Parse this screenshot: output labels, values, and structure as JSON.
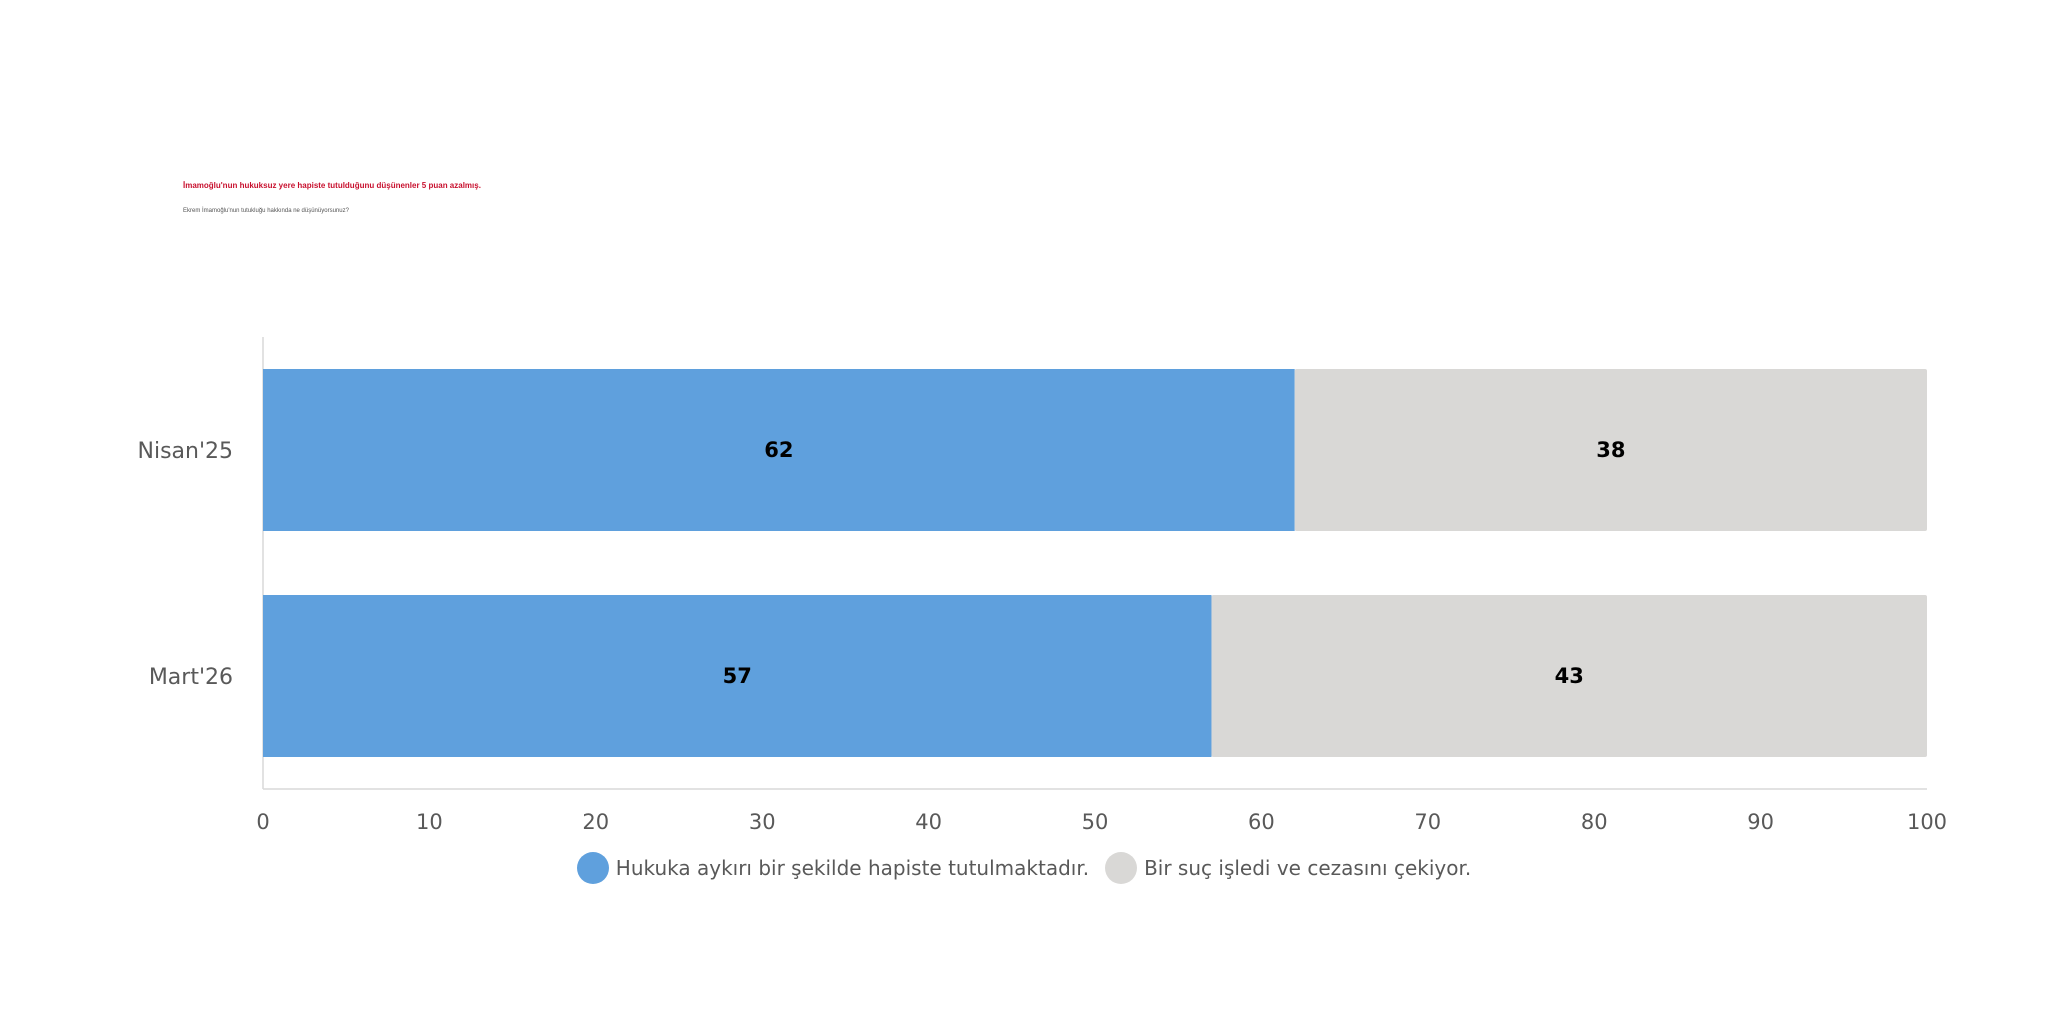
{
  "header": {
    "title": "İmamoğlu'nun hukuksuz yere hapiste tutulduğunu düşünenler 5 puan azalmış.",
    "subtitle": "Ekrem İmamoğlu'nun tutukluğu hakkında ne düşünüyorsunuz?"
  },
  "colors": {
    "series1": "#5fa0dd",
    "series2": "#d9d8d6",
    "axis_text": "#595959",
    "title": "#c8102e"
  },
  "legend": {
    "items": [
      {
        "label": "Hukuka aykırı bir şekilde hapiste tutulmaktadır.",
        "color": "#5fa0dd"
      },
      {
        "label": "Bir suç işledi ve cezasını çekiyor.",
        "color": "#d9d8d6"
      }
    ]
  },
  "chart_data": {
    "type": "bar",
    "orientation": "horizontal",
    "stacked": true,
    "categories": [
      "Nisan'25",
      "Mart'26"
    ],
    "series": [
      {
        "name": "Hukuka aykırı bir şekilde hapiste tutulmaktadır.",
        "values": [
          62,
          57
        ],
        "color": "#5fa0dd"
      },
      {
        "name": "Bir suç işledi ve cezasını çekiyor.",
        "values": [
          38,
          43
        ],
        "color": "#d9d8d6"
      }
    ],
    "xlim": [
      0,
      100
    ],
    "xticks": [
      0,
      10,
      20,
      30,
      40,
      50,
      60,
      70,
      80,
      90,
      100
    ],
    "grid": false,
    "legend_position": "bottom",
    "data_labels": true
  }
}
